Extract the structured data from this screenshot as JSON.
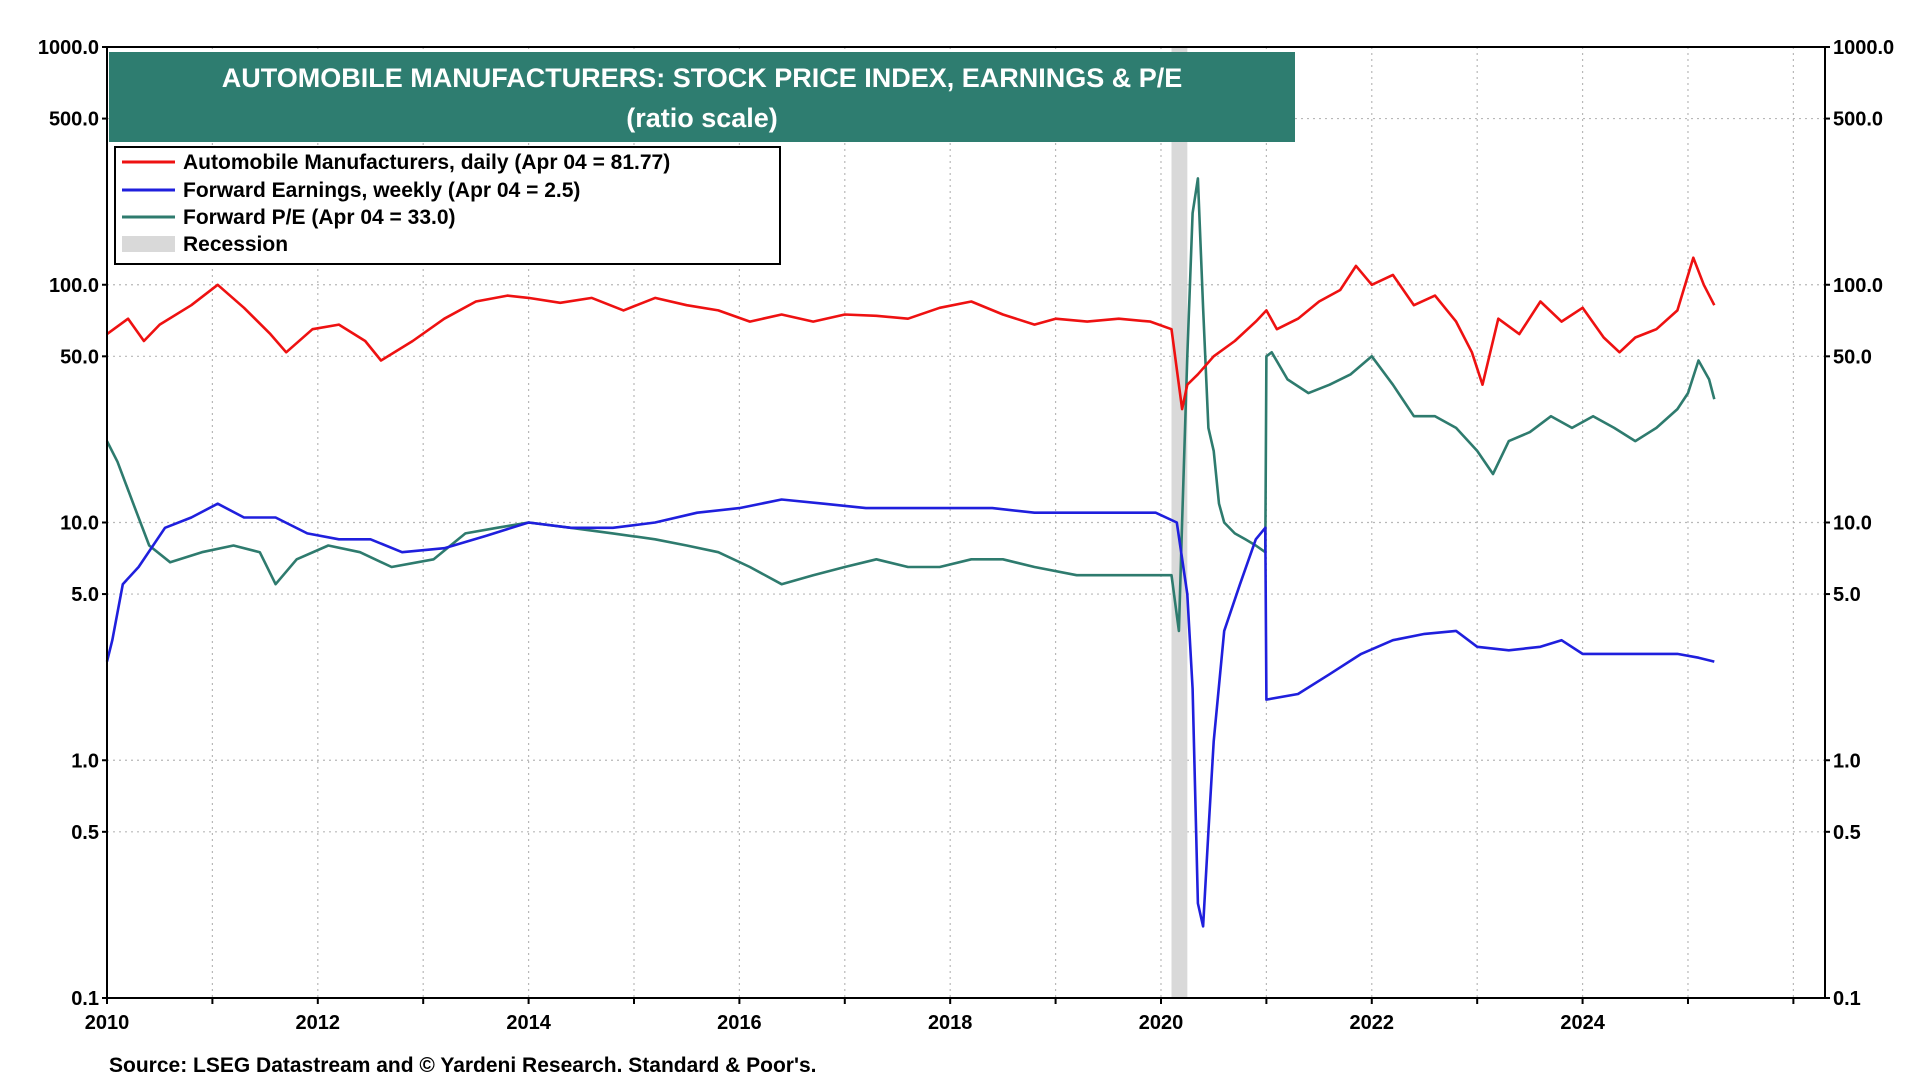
{
  "chart_data": {
    "type": "line",
    "title": "AUTOMOBILE MANUFACTURERS: STOCK PRICE INDEX, EARNINGS & P/E",
    "subtitle": "(ratio scale)",
    "source": "Source: LSEG Datastream and © Yardeni Research. Standard & Poor's.",
    "y_scale": "log",
    "ylim": [
      0.1,
      1000
    ],
    "xlim": [
      2010.0,
      2026.3
    ],
    "grid": true,
    "legend_position": "top-left",
    "y_ticks": [
      {
        "value": 1000,
        "label": "1000.0"
      },
      {
        "value": 500,
        "label": "500.0"
      },
      {
        "value": 100,
        "label": "100.0"
      },
      {
        "value": 50,
        "label": "50.0"
      },
      {
        "value": 10,
        "label": "10.0"
      },
      {
        "value": 5,
        "label": "5.0"
      },
      {
        "value": 1,
        "label": "1.0"
      },
      {
        "value": 0.5,
        "label": "0.5"
      },
      {
        "value": 0.1,
        "label": "0.1"
      }
    ],
    "x_ticks": [
      {
        "value": 2010,
        "label": "2010"
      },
      {
        "value": 2012,
        "label": "2012"
      },
      {
        "value": 2014,
        "label": "2014"
      },
      {
        "value": 2016,
        "label": "2016"
      },
      {
        "value": 2018,
        "label": "2018"
      },
      {
        "value": 2020,
        "label": "2020"
      },
      {
        "value": 2022,
        "label": "2022"
      },
      {
        "value": 2024,
        "label": "2024"
      }
    ],
    "recession": {
      "label": "Recession",
      "start": 2020.1,
      "end": 2020.25,
      "color": "#d9d9d9"
    },
    "series": [
      {
        "name": "Automobile Manufacturers, daily (Apr 04 = 81.77)",
        "color": "#ee1111",
        "x": [
          2010.0,
          2010.2,
          2010.35,
          2010.5,
          2010.8,
          2011.05,
          2011.3,
          2011.55,
          2011.7,
          2011.95,
          2012.2,
          2012.45,
          2012.6,
          2012.9,
          2013.2,
          2013.5,
          2013.8,
          2014.0,
          2014.3,
          2014.6,
          2014.9,
          2015.2,
          2015.5,
          2015.8,
          2016.1,
          2016.4,
          2016.7,
          2017.0,
          2017.3,
          2017.6,
          2017.9,
          2018.2,
          2018.5,
          2018.8,
          2019.0,
          2019.3,
          2019.6,
          2019.9,
          2020.1,
          2020.2,
          2020.25,
          2020.35,
          2020.5,
          2020.7,
          2020.9,
          2021.0,
          2021.1,
          2021.3,
          2021.5,
          2021.7,
          2021.85,
          2022.0,
          2022.2,
          2022.4,
          2022.6,
          2022.8,
          2022.95,
          2023.05,
          2023.2,
          2023.4,
          2023.6,
          2023.8,
          2024.0,
          2024.2,
          2024.35,
          2024.5,
          2024.7,
          2024.9,
          2025.05,
          2025.15,
          2025.25
        ],
        "values": [
          62,
          72,
          58,
          68,
          82,
          100,
          80,
          62,
          52,
          65,
          68,
          58,
          48,
          58,
          72,
          85,
          90,
          88,
          84,
          88,
          78,
          88,
          82,
          78,
          70,
          75,
          70,
          75,
          74,
          72,
          80,
          85,
          75,
          68,
          72,
          70,
          72,
          70,
          65,
          30,
          38,
          42,
          50,
          58,
          70,
          78,
          65,
          72,
          85,
          95,
          120,
          100,
          110,
          82,
          90,
          70,
          52,
          38,
          72,
          62,
          85,
          70,
          80,
          60,
          52,
          60,
          65,
          78,
          130,
          100,
          82
        ]
      },
      {
        "name": "Forward Earnings, weekly (Apr 04 = 2.5)",
        "color": "#1f1fdd",
        "x": [
          2010.0,
          2010.05,
          2010.15,
          2010.3,
          2010.55,
          2010.8,
          2011.05,
          2011.3,
          2011.6,
          2011.9,
          2012.2,
          2012.5,
          2012.8,
          2013.2,
          2013.6,
          2014.0,
          2014.4,
          2014.8,
          2015.2,
          2015.6,
          2016.0,
          2016.4,
          2016.8,
          2017.2,
          2017.6,
          2018.0,
          2018.4,
          2018.8,
          2019.2,
          2019.6,
          2019.95,
          2020.15,
          2020.25,
          2020.3,
          2020.35,
          2020.4,
          2020.45,
          2020.5,
          2020.6,
          2020.75,
          2020.9,
          2020.99,
          2021.0,
          2021.3,
          2021.6,
          2021.9,
          2022.2,
          2022.5,
          2022.8,
          2023.0,
          2023.3,
          2023.6,
          2023.8,
          2024.0,
          2024.3,
          2024.6,
          2024.9,
          2025.1,
          2025.25
        ],
        "values": [
          2.6,
          3.2,
          5.5,
          6.5,
          9.5,
          10.5,
          12,
          10.5,
          10.5,
          9.0,
          8.5,
          8.5,
          7.5,
          7.8,
          8.8,
          10,
          9.5,
          9.5,
          10,
          11,
          11.5,
          12.5,
          12,
          11.5,
          11.5,
          11.5,
          11.5,
          11,
          11,
          11,
          11,
          10,
          5.0,
          2.0,
          0.25,
          0.2,
          0.5,
          1.2,
          3.5,
          5.5,
          8.5,
          9.5,
          1.8,
          1.9,
          2.3,
          2.8,
          3.2,
          3.4,
          3.5,
          3.0,
          2.9,
          3.0,
          3.2,
          2.8,
          2.8,
          2.8,
          2.8,
          2.7,
          2.6
        ]
      },
      {
        "name": "Forward P/E (Apr 04 = 33.0)",
        "color": "#2e7b6e",
        "x": [
          2010.0,
          2010.1,
          2010.25,
          2010.4,
          2010.6,
          2010.9,
          2011.2,
          2011.45,
          2011.6,
          2011.8,
          2012.1,
          2012.4,
          2012.7,
          2013.1,
          2013.4,
          2013.7,
          2014.0,
          2014.4,
          2014.8,
          2015.2,
          2015.5,
          2015.8,
          2016.1,
          2016.4,
          2016.7,
          2017.0,
          2017.3,
          2017.6,
          2017.9,
          2018.2,
          2018.5,
          2018.8,
          2019.2,
          2019.6,
          2019.95,
          2020.1,
          2020.17,
          2020.2,
          2020.25,
          2020.3,
          2020.35,
          2020.4,
          2020.45,
          2020.5,
          2020.55,
          2020.6,
          2020.7,
          2020.8,
          2020.9,
          2020.99,
          2021.0,
          2021.05,
          2021.2,
          2021.4,
          2021.6,
          2021.8,
          2022.0,
          2022.2,
          2022.4,
          2022.6,
          2022.8,
          2023.0,
          2023.15,
          2023.3,
          2023.5,
          2023.7,
          2023.9,
          2024.1,
          2024.3,
          2024.5,
          2024.7,
          2024.9,
          2025.0,
          2025.1,
          2025.2,
          2025.25
        ],
        "values": [
          22,
          18,
          12,
          8,
          6.8,
          7.5,
          8.0,
          7.5,
          5.5,
          7.0,
          8.0,
          7.5,
          6.5,
          7.0,
          9.0,
          9.5,
          10,
          9.5,
          9.0,
          8.5,
          8.0,
          7.5,
          6.5,
          5.5,
          6.0,
          6.5,
          7.0,
          6.5,
          6.5,
          7.0,
          7.0,
          6.5,
          6.0,
          6.0,
          6.0,
          6.0,
          3.5,
          10,
          50,
          200,
          280,
          80,
          25,
          20,
          12,
          10,
          9.0,
          8.5,
          8.0,
          7.5,
          50,
          52,
          40,
          35,
          38,
          42,
          50,
          38,
          28,
          28,
          25,
          20,
          16,
          22,
          24,
          28,
          25,
          28,
          25,
          22,
          25,
          30,
          35,
          48,
          40,
          33
        ]
      }
    ]
  }
}
